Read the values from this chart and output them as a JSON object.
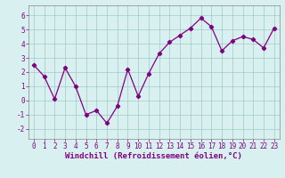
{
  "x": [
    0,
    1,
    2,
    3,
    4,
    5,
    6,
    7,
    8,
    9,
    10,
    11,
    12,
    13,
    14,
    15,
    16,
    17,
    18,
    19,
    20,
    21,
    22,
    23
  ],
  "y": [
    2.5,
    1.7,
    0.1,
    2.3,
    1.0,
    -1.0,
    -0.7,
    -1.6,
    -0.4,
    2.2,
    0.3,
    1.9,
    3.3,
    4.1,
    4.6,
    5.1,
    5.8,
    5.2,
    3.5,
    4.2,
    4.5,
    4.3,
    3.7,
    5.1
  ],
  "xlabel": "Windchill (Refroidissement éolien,°C)",
  "xlim": [
    -0.5,
    23.5
  ],
  "ylim": [
    -2.7,
    6.7
  ],
  "yticks": [
    -2,
    -1,
    0,
    1,
    2,
    3,
    4,
    5,
    6
  ],
  "xticks": [
    0,
    1,
    2,
    3,
    4,
    5,
    6,
    7,
    8,
    9,
    10,
    11,
    12,
    13,
    14,
    15,
    16,
    17,
    18,
    19,
    20,
    21,
    22,
    23
  ],
  "line_color": "#800080",
  "marker": "D",
  "markersize": 2.2,
  "bg_color": "#d8f0f0",
  "grid_color": "#a0c8c8",
  "tick_label_fontsize": 5.5,
  "xlabel_fontsize": 6.5,
  "linewidth": 0.9
}
